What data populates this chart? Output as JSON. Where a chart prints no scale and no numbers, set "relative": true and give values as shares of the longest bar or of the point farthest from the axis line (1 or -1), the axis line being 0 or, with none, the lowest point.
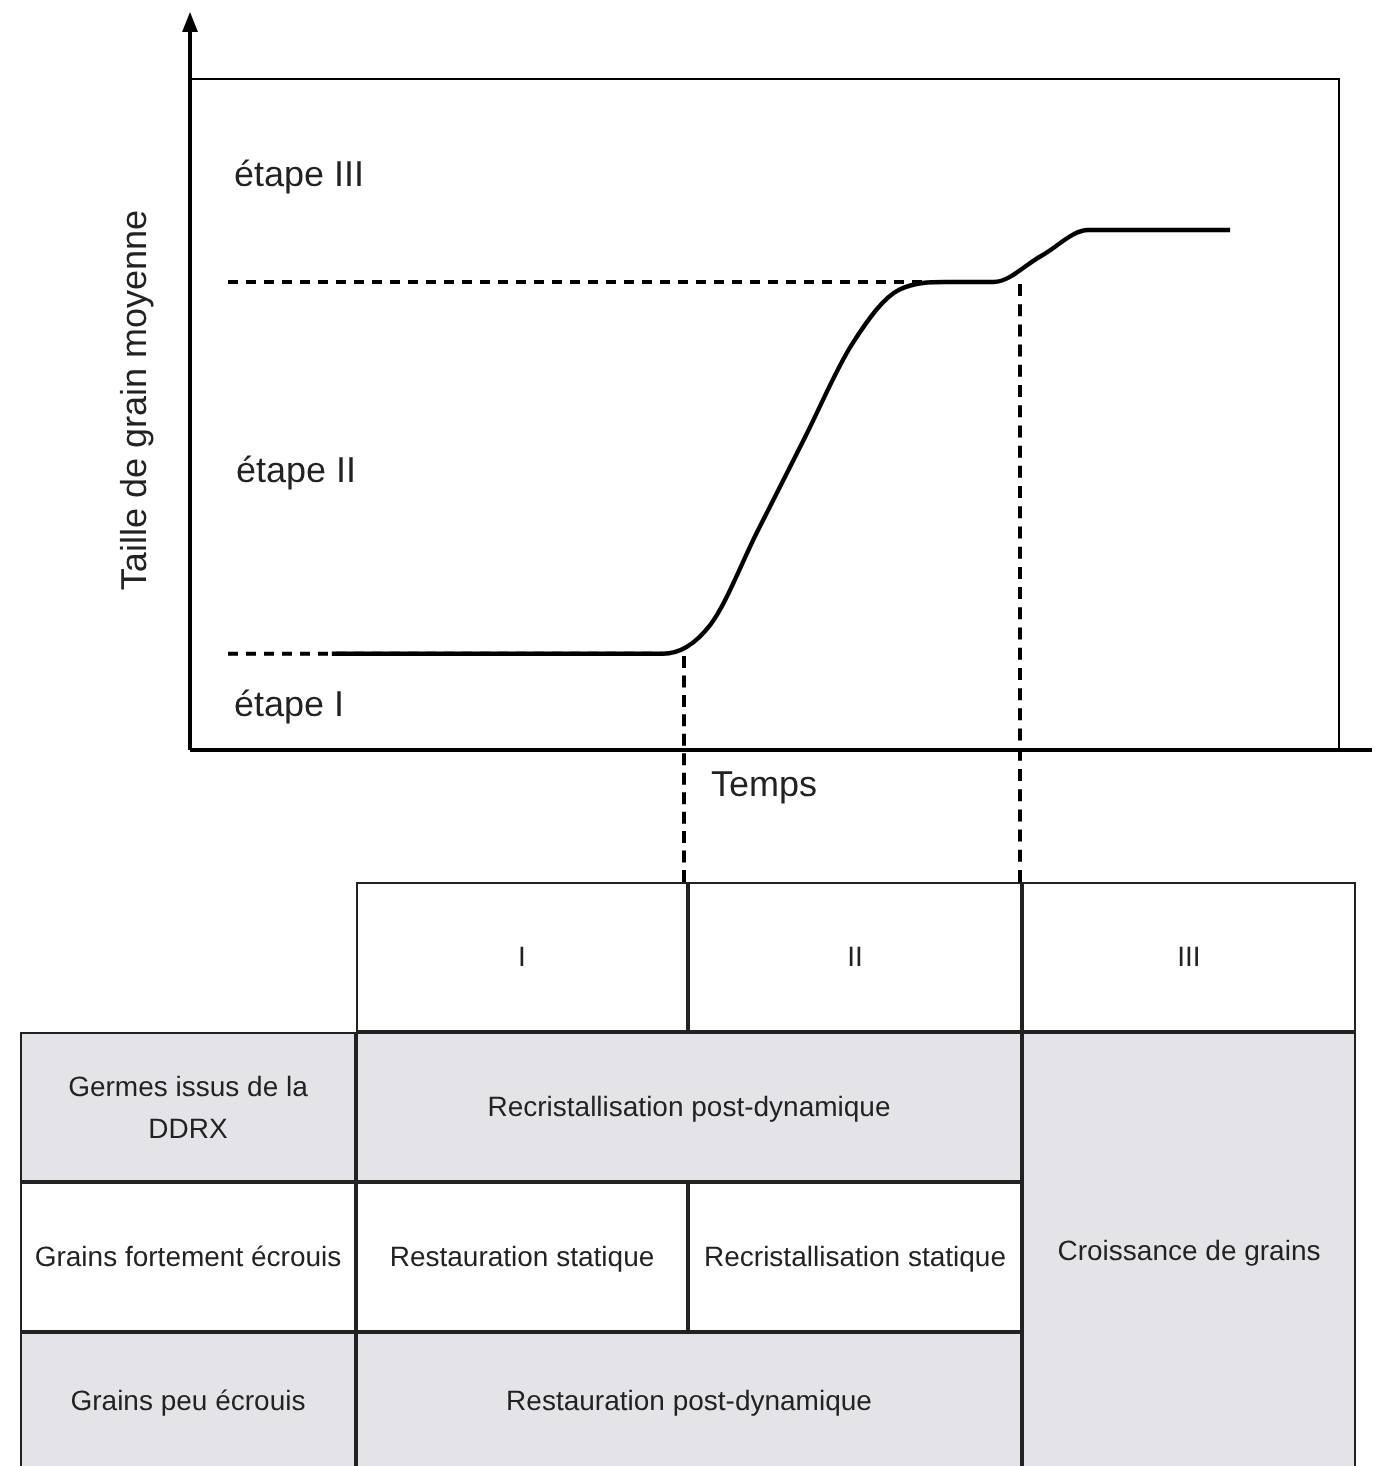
{
  "chart_data": [
    {
      "type": "line",
      "xlabel": "Temps",
      "ylabel": "Taille de grain moyenne",
      "relative": true,
      "legend": false,
      "marker": "none",
      "line_style": "solid",
      "categories": [
        null,
        null,
        null,
        null,
        null,
        null,
        null,
        null,
        null,
        null,
        null,
        null,
        null,
        null,
        null,
        null,
        null,
        null,
        null,
        null,
        null,
        null,
        null,
        null,
        null,
        null
      ],
      "series": [
        {
          "color": "#000000",
          "values": [
            null,
            null,
            null,
            0.185,
            0.185,
            0.185,
            0.185,
            0.185,
            0.185,
            0.185,
            0.185,
            0.24,
            0.42,
            0.6,
            0.78,
            0.885,
            0.9,
            0.9,
            0.95,
            1,
            1,
            1,
            1,
            null,
            null,
            null
          ]
        }
      ],
      "ref_lines": [
        {
          "axis": "y",
          "value": 0.185,
          "line_style": "dashed"
        },
        {
          "axis": "y",
          "value": 0.9,
          "line_style": "dashed"
        }
      ],
      "annotations": [
        "étape III",
        "étape II",
        "étape I"
      ]
    },
    {
      "type": "other",
      "annotations": [
        "I",
        "II",
        "III",
        "Germes issus de la DDRX",
        "Recristallisation post-dynamique",
        "Grains fortement écrouis",
        "Restauration statique",
        "Recristallisation statique",
        "Croissance de grains",
        "Grains peu écrouis",
        "Restauration post-dynamique"
      ]
    }
  ]
}
